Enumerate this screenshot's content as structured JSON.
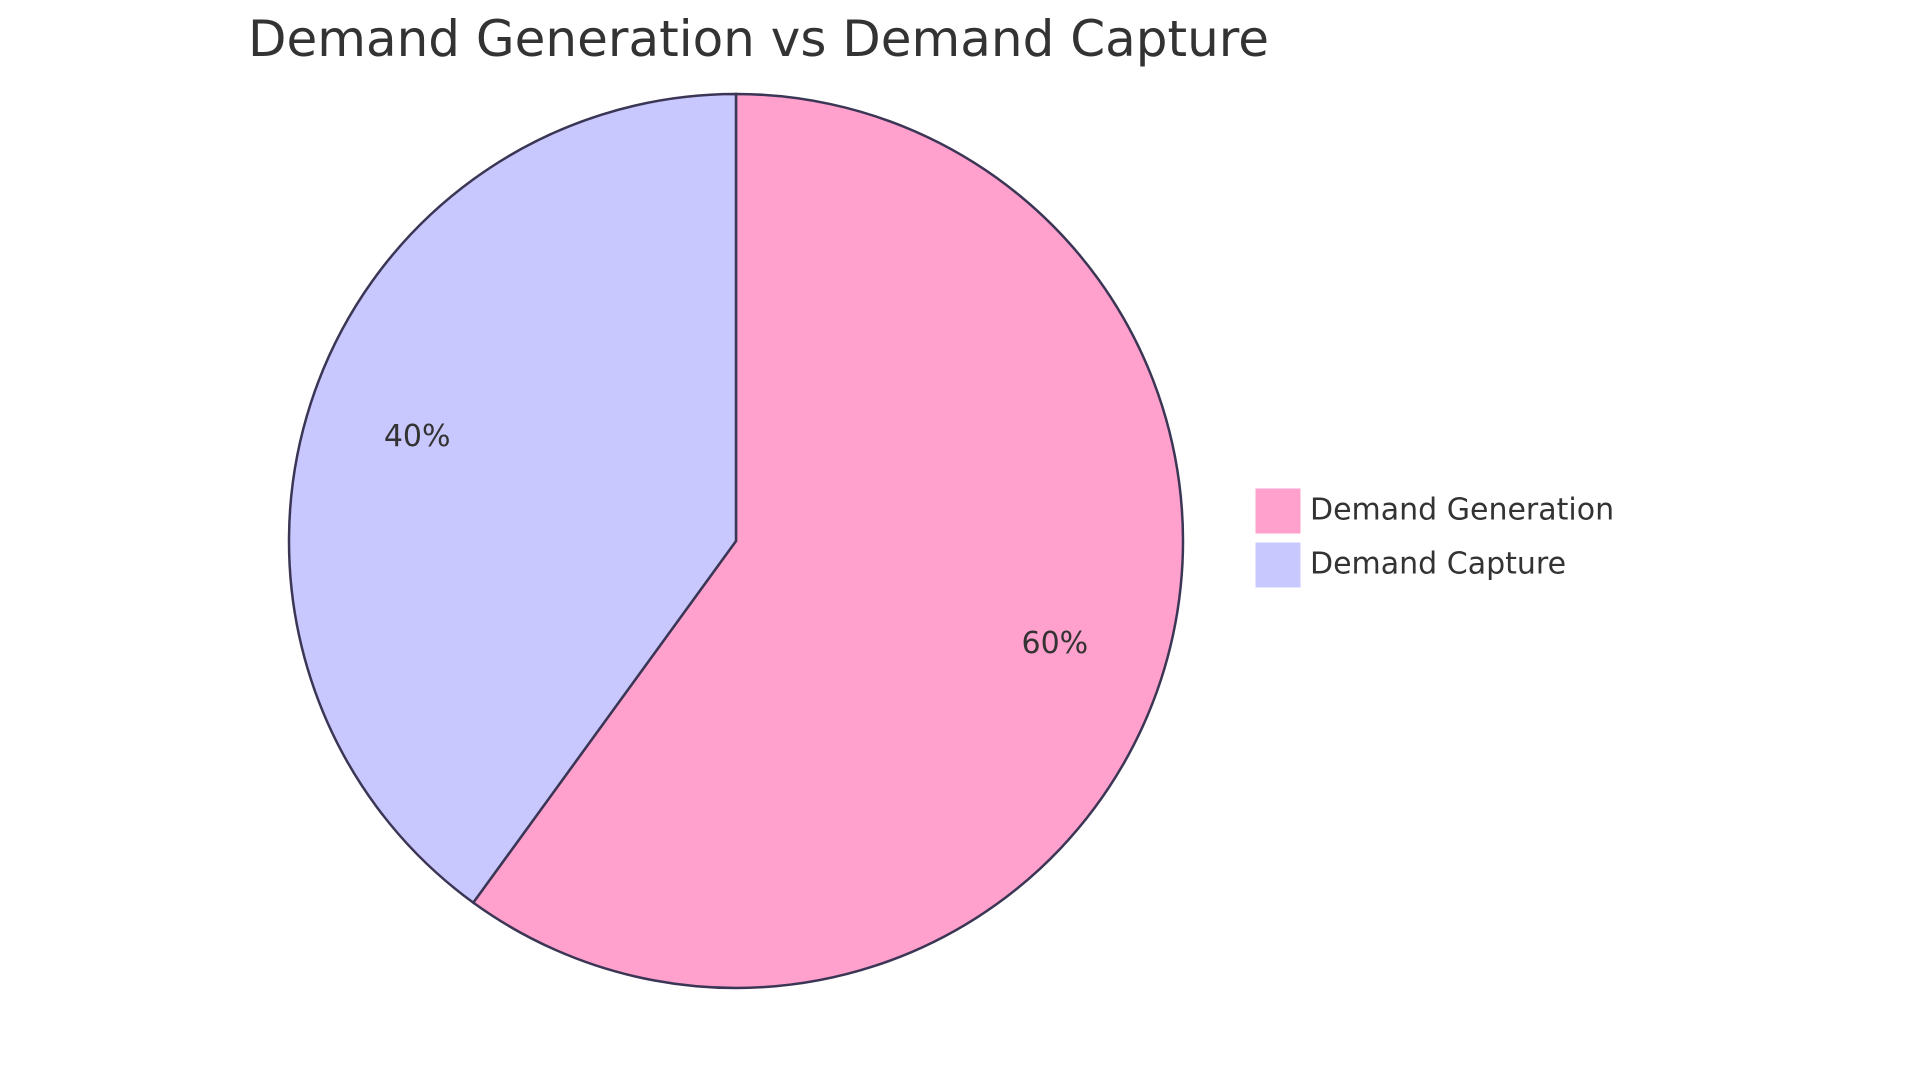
{
  "chart_data": {
    "type": "pie",
    "title": "Demand Generation vs Demand Capture",
    "slices": [
      {
        "label": "Demand Generation",
        "value": 60,
        "display": "60%",
        "color": "#ffa1cc"
      },
      {
        "label": "Demand Capture",
        "value": 40,
        "display": "40%",
        "color": "#c8c8ff"
      }
    ],
    "legend_position": "right",
    "outline_color": "#3b3655"
  }
}
